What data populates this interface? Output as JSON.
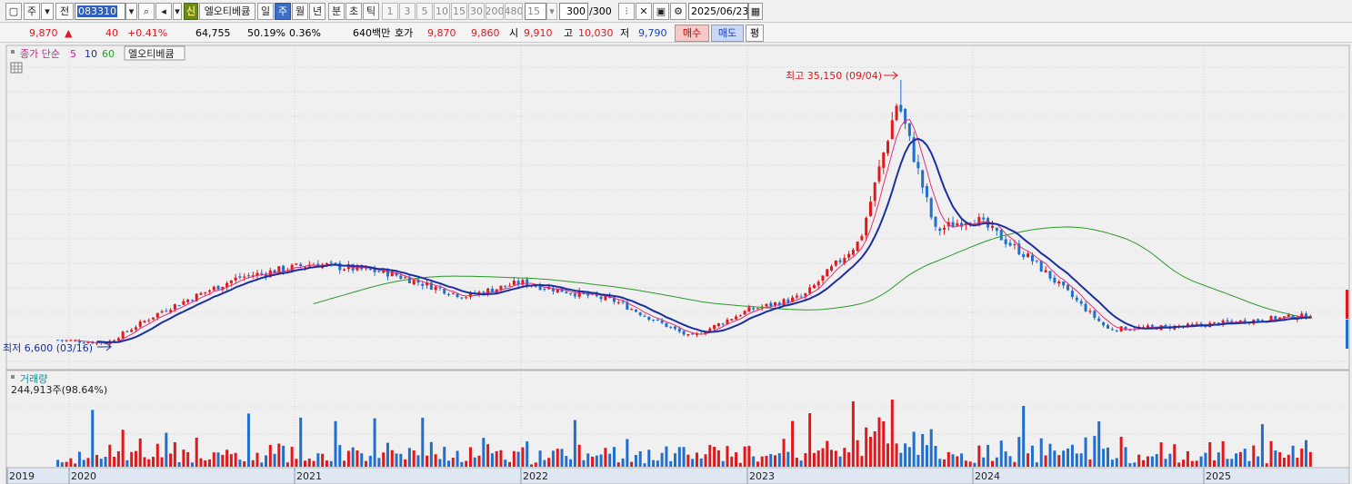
{
  "toolbar": {
    "period_type": "주",
    "prev_label": "전",
    "stock_code": "083310",
    "new_badge": "신",
    "stock_name": "엘오티베큠",
    "tf_day": "일",
    "tf_week": "주",
    "tf_month": "월",
    "tf_year": "년",
    "tf_minute": "분",
    "tf_second": "초",
    "tf_tick": "틱",
    "intervals": [
      "1",
      "3",
      "5",
      "10",
      "15",
      "30",
      "200",
      "480"
    ],
    "interval_select": "15",
    "bar_count": "300",
    "bar_total": "/300",
    "date": "2025/06/23"
  },
  "quote": {
    "price": "9,870",
    "change": "40",
    "change_pct": "+0.41%",
    "volume": "64,755",
    "vol_ratio": "50.19%",
    "turnover": "0.36%",
    "amount": "640백만",
    "hoga_label": "호가",
    "ask": "9,870",
    "bid": "9,860",
    "open_label": "시",
    "open": "9,910",
    "high_label": "고",
    "high": "10,030",
    "low_label": "저",
    "low": "9,790",
    "buy_label": "매수",
    "sell_label": "매도",
    "even_label": "평"
  },
  "legend": {
    "title": "종가 단순",
    "ma1": "5",
    "ma2": "10",
    "ma3": "60",
    "name": "엘오티베큠"
  },
  "annotations": {
    "high": "최고 35,150 (09/04)",
    "low": "최저 6,600 (03/16)"
  },
  "volume_panel": {
    "title": "거래량",
    "value": "244,913주(98.64%)"
  },
  "colors": {
    "up": "#e0171d",
    "down": "#1f6fd0",
    "ma5": "#e0307a",
    "ma10": "#1a2fa0",
    "ma60": "#2a9a2a"
  },
  "chart_data": {
    "type": "candlestick",
    "interval": "weekly",
    "x_labels": [
      "2019",
      "2020",
      "2021",
      "2022",
      "2023",
      "2024",
      "2025"
    ],
    "close_anchors": [
      {
        "date": "2019-12",
        "close": 7400
      },
      {
        "date": "2020-03",
        "close": 7000
      },
      {
        "date": "2020-06",
        "close": 10500
      },
      {
        "date": "2020-10",
        "close": 14000
      },
      {
        "date": "2021-02",
        "close": 15500
      },
      {
        "date": "2021-06",
        "close": 14500
      },
      {
        "date": "2021-10",
        "close": 12000
      },
      {
        "date": "2022-01",
        "close": 13500
      },
      {
        "date": "2022-06",
        "close": 11500
      },
      {
        "date": "2022-10",
        "close": 7600
      },
      {
        "date": "2023-01",
        "close": 10500
      },
      {
        "date": "2023-04",
        "close": 12000
      },
      {
        "date": "2023-07",
        "close": 18000
      },
      {
        "date": "2023-09",
        "close": 33000
      },
      {
        "date": "2023-11",
        "close": 19000
      },
      {
        "date": "2024-01",
        "close": 20500
      },
      {
        "date": "2024-04",
        "close": 16000
      },
      {
        "date": "2024-08",
        "close": 8500
      },
      {
        "date": "2024-12",
        "close": 8800
      },
      {
        "date": "2025-06",
        "close": 9870
      }
    ],
    "high": {
      "value": 35150,
      "date": "09/04"
    },
    "low": {
      "value": 6600,
      "date": "03/16"
    },
    "volume_shown": 244913
  }
}
